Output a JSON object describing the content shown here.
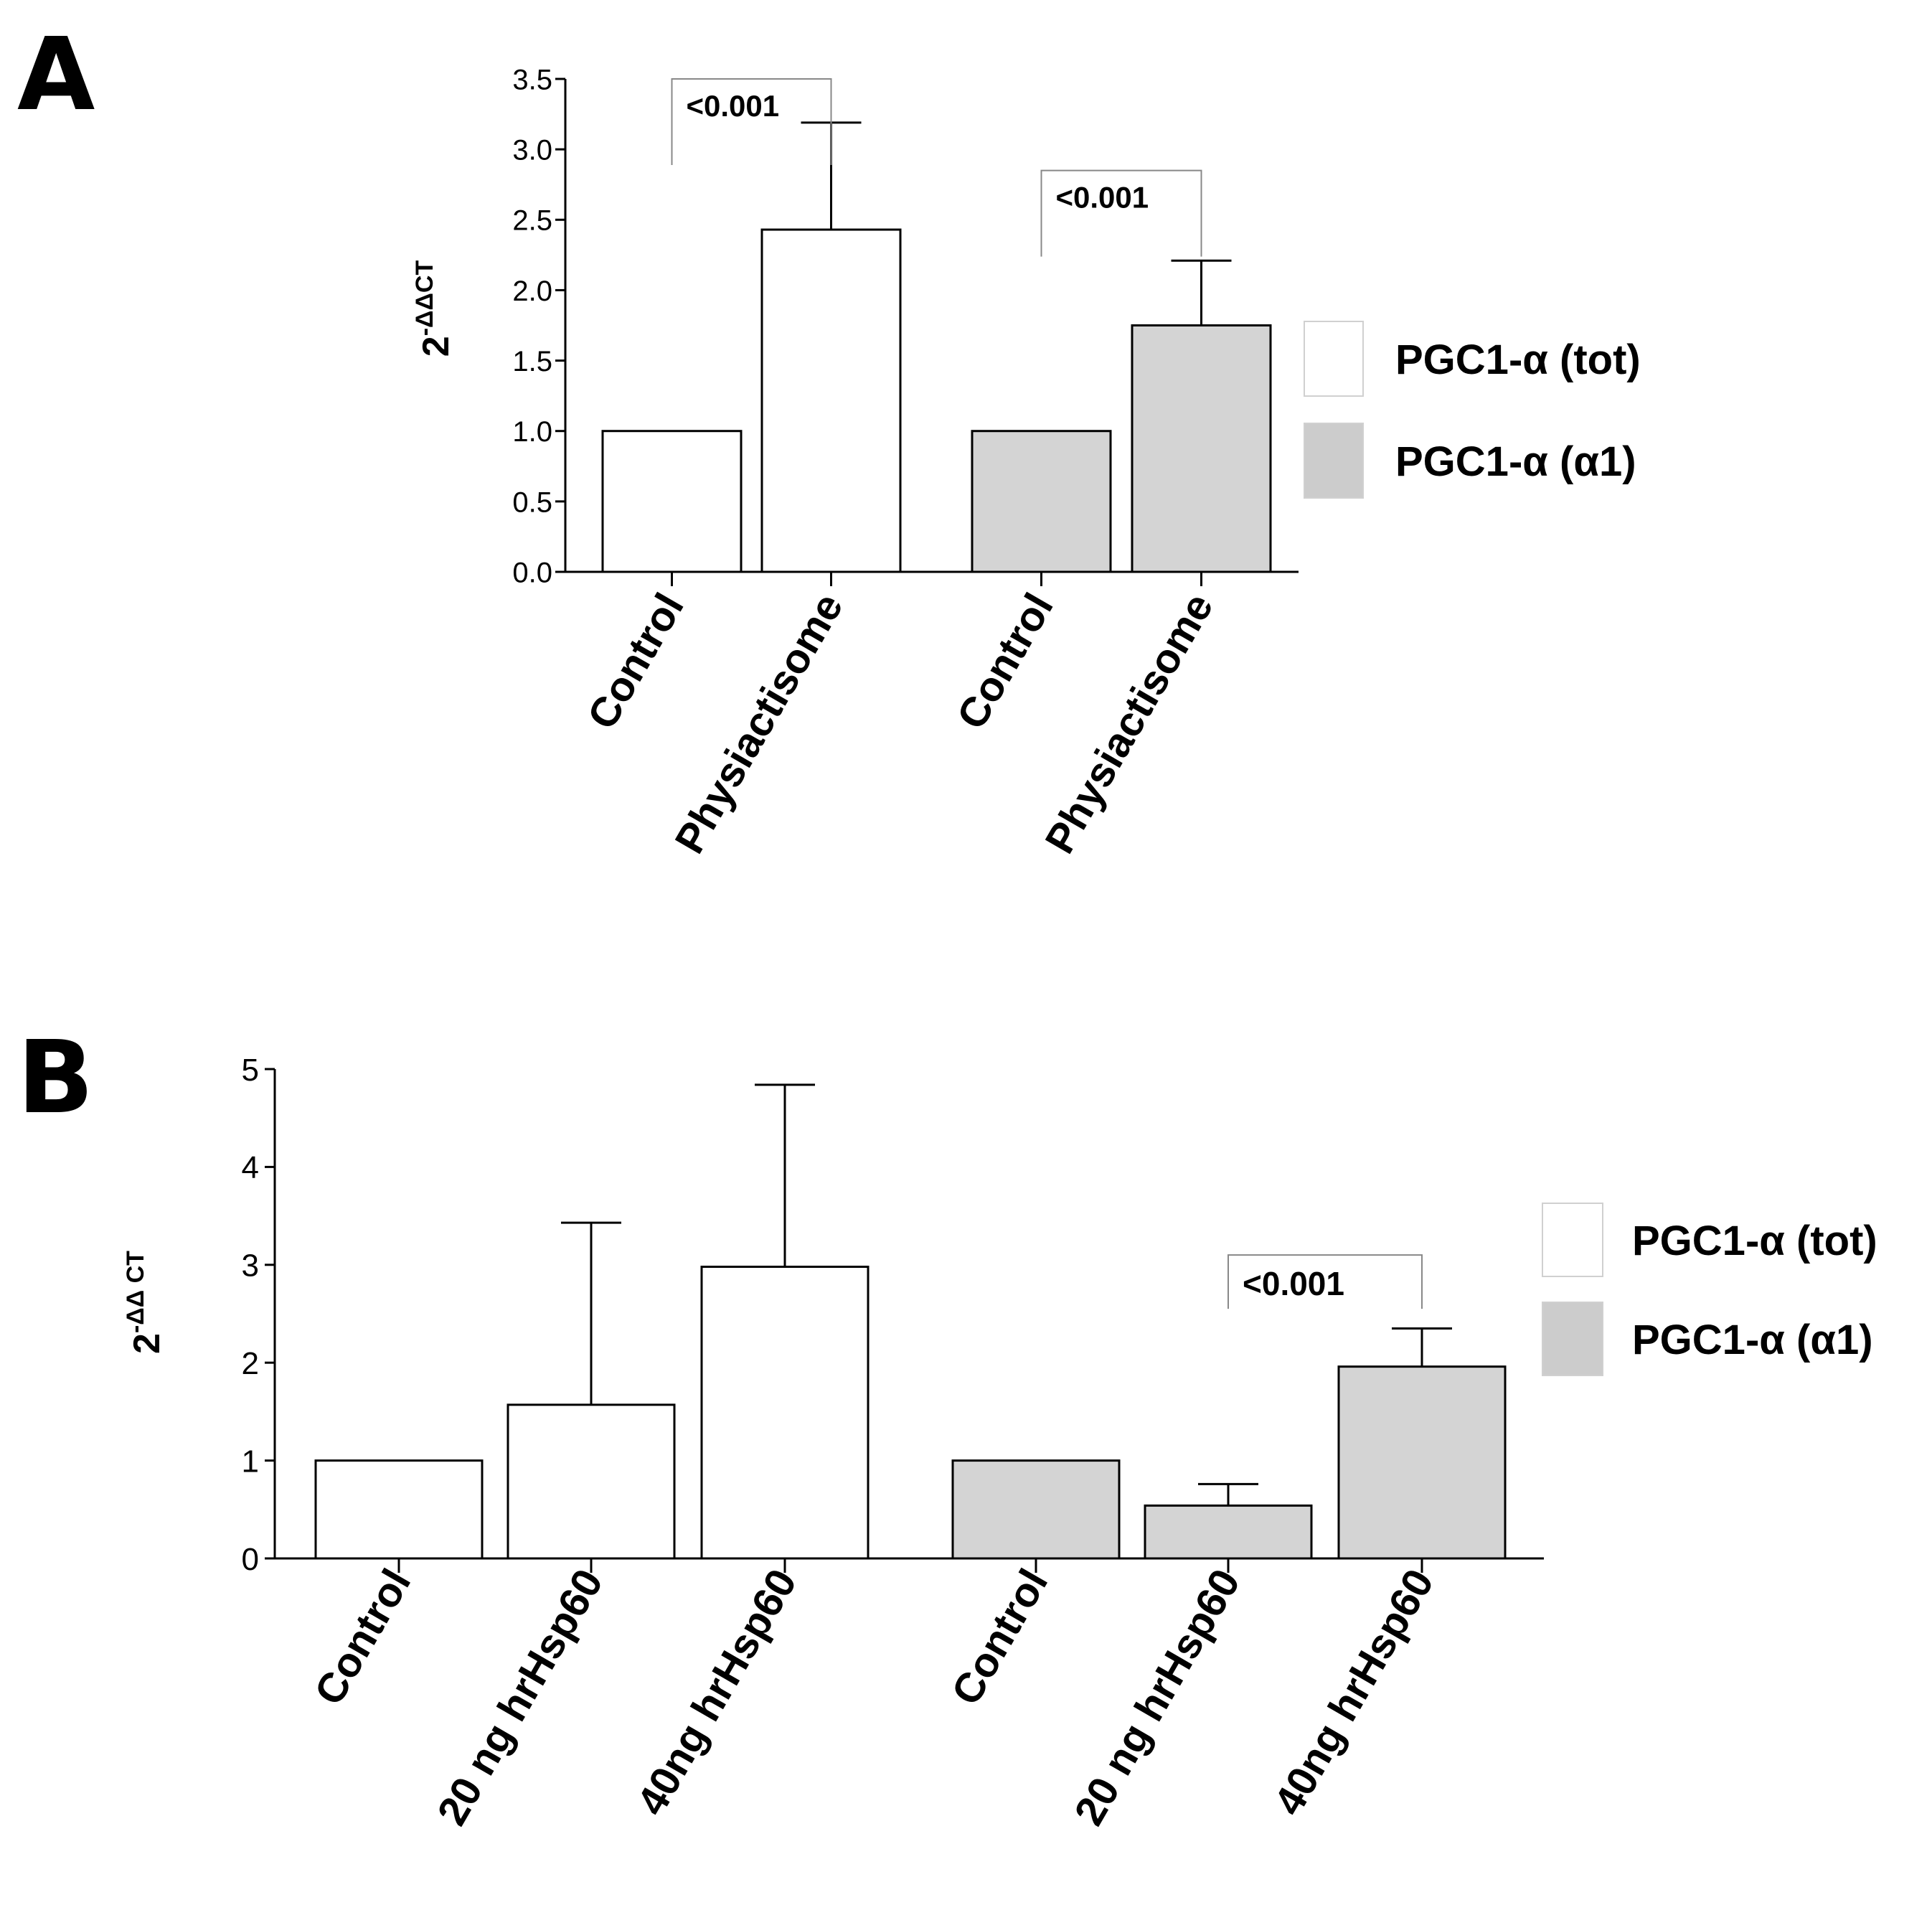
{
  "chart_data": [
    {
      "panel": "A",
      "type": "bar",
      "ylabel": {
        "base": "2",
        "exponent": "-ΔΔCT"
      },
      "ylim": [
        0,
        3.5
      ],
      "yticks": [
        "0.0",
        "0.5",
        "1.0",
        "1.5",
        "2.0",
        "2.5",
        "3.0",
        "3.5"
      ],
      "categories": [
        "Control",
        "Physiactisome",
        "Control",
        "Physiactisome"
      ],
      "bars": [
        {
          "category": "Control",
          "value": 1.0,
          "error": null,
          "series": "PGC1-α (tot)"
        },
        {
          "category": "Physiactisome",
          "value": 2.43,
          "error": 0.76,
          "series": "PGC1-α (tot)"
        },
        {
          "category": "Control",
          "value": 1.0,
          "error": null,
          "series": "PGC1-α (α1)"
        },
        {
          "category": "Physiactisome",
          "value": 1.75,
          "error": 0.46,
          "series": "PGC1-α (α1)"
        }
      ],
      "significance": [
        {
          "from": 0,
          "to": 1,
          "label": "<0.001",
          "level": 3.5
        },
        {
          "from": 2,
          "to": 3,
          "label": "<0.001",
          "level": 2.85
        }
      ],
      "legend": [
        {
          "label": "PGC1-α (tot)",
          "color": "#ffffff"
        },
        {
          "label": "PGC1-α (α1)",
          "color": "#d4d4d4"
        }
      ]
    },
    {
      "panel": "B",
      "type": "bar",
      "ylabel": {
        "base": "2",
        "exponent": "-ΔΔ CT"
      },
      "ylim": [
        0,
        5
      ],
      "yticks": [
        "0",
        "1",
        "2",
        "3",
        "4",
        "5"
      ],
      "categories": [
        "Control",
        "20 ng hrHsp60",
        "40ng hrHsp60",
        "Control",
        "20 ng hrHsp60",
        "40ng hrHsp60"
      ],
      "bars": [
        {
          "category": "Control",
          "value": 1.0,
          "error": null,
          "series": "PGC1-α (tot)"
        },
        {
          "category": "20 ng hrHsp60",
          "value": 1.57,
          "error": 1.86,
          "series": "PGC1-α (tot)"
        },
        {
          "category": "40ng hrHsp60",
          "value": 2.98,
          "error": 1.86,
          "series": "PGC1-α (tot)"
        },
        {
          "category": "Control",
          "value": 1.0,
          "error": null,
          "series": "PGC1-α (α1)"
        },
        {
          "category": "20 ng hrHsp60",
          "value": 0.54,
          "error": 0.22,
          "series": "PGC1-α (α1)"
        },
        {
          "category": "40ng hrHsp60",
          "value": 1.96,
          "error": 0.39,
          "series": "PGC1-α (α1)"
        }
      ],
      "significance": [
        {
          "from": 4,
          "to": 5,
          "label": "<0.001",
          "level": 3.1
        }
      ],
      "legend": [
        {
          "label": "PGC1-α (tot)",
          "color": "#ffffff"
        },
        {
          "label": "PGC1-α (α1)",
          "color": "#d4d4d4"
        }
      ]
    }
  ]
}
